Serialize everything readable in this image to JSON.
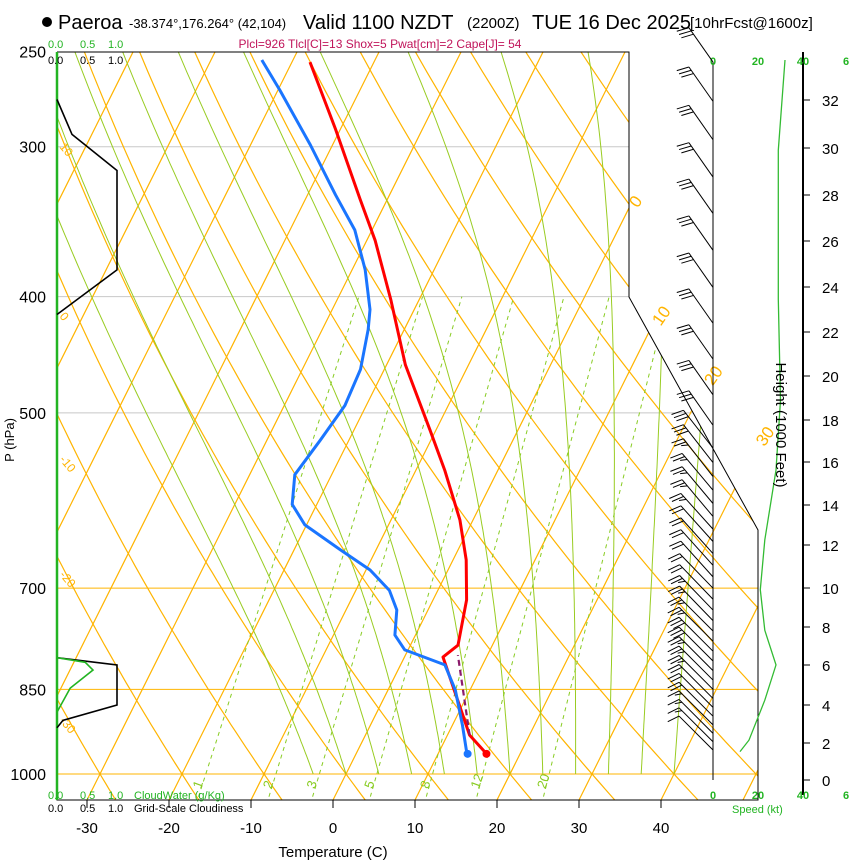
{
  "header": {
    "station": "Paeroa",
    "coords": "-38.374°,176.264° (42,104)",
    "valid": "Valid 1100 NZDT",
    "utc": "(2200Z)",
    "date": "TUE 16 Dec 2025",
    "forecast": "[10hrFcst@1600z]",
    "indices": "Plcl=926 Tlcl[C]=13 Shox=5 Pwat[cm]=2 Cape[J]= 54"
  },
  "cloud_panel": {
    "top_green": [
      "0.0",
      "0.5",
      "1.0"
    ],
    "top_black": [
      "0.0",
      "0.5",
      "1.0"
    ],
    "bottom_green": [
      "0.0",
      "0.5",
      "1.0"
    ],
    "bottom_green_label": "CloudWater (g/Kg)",
    "bottom_black": [
      "0.0",
      "0.5",
      "1.0"
    ],
    "bottom_black_label": "Grid-Scale Cloudiness"
  },
  "wind_panel": {
    "speed_ticks": [
      "0",
      "20",
      "40",
      "6"
    ],
    "speed_label": "Speed (kt)",
    "height_label": "Height (1000 Feet)",
    "height_ticks": [
      "0",
      "2",
      "4",
      "6",
      "8",
      "10",
      "12",
      "14",
      "16",
      "18",
      "20",
      "22",
      "24",
      "26",
      "28",
      "30",
      "32"
    ]
  },
  "colors": {
    "temperature": "#ff0000",
    "dewpoint": "#1a75ff",
    "parcel": "#8b1a6b",
    "isotherm": "#ffb400",
    "moist_adiabat": "#99cc22",
    "mixing_ratio": "#88cc22",
    "cloud_fraction": "#000000",
    "cloud_water": "#22b422",
    "indices": "#c0145a"
  },
  "chart_data": {
    "type": "line",
    "title": "Skew-T log-P sounding",
    "xlabel": "Temperature (C)",
    "ylabel": "P (hPa)",
    "x_ticks": [
      "-30",
      "-20",
      "-10",
      "0",
      "10",
      "20",
      "30",
      "40"
    ],
    "x_tick_values": [
      -30,
      -20,
      -10,
      0,
      10,
      20,
      30,
      40
    ],
    "y_ticks": [
      "250",
      "300",
      "400",
      "500",
      "700",
      "850",
      "1000"
    ],
    "y_tick_values": [
      250,
      300,
      400,
      500,
      700,
      850,
      1000
    ],
    "xlim": [
      -33,
      47
    ],
    "ylim": [
      1050,
      250
    ],
    "isotherm_labels": [
      "0",
      "10",
      "20",
      "30"
    ],
    "dry_adiabat_labels": [
      "10",
      "0",
      "-10",
      "-20",
      "-30"
    ],
    "mixing_ratio_labels": [
      "1",
      "2",
      "3",
      "5",
      "8",
      "12",
      "20"
    ],
    "mixing_ratio_values": [
      1,
      2,
      3,
      5,
      8,
      12,
      20
    ],
    "series": [
      {
        "name": "Temperature",
        "p": [
          962,
          928,
          799,
          781,
          716,
          663,
          614,
          558,
          517,
          456,
          402,
          359,
          332,
          290,
          255
        ],
        "t": [
          15.9,
          12.7,
          4.7,
          5.8,
          4.1,
          1.6,
          -1.6,
          -6.5,
          -10.7,
          -17.7,
          -23.5,
          -29.0,
          -33.3,
          -40.6,
          -47.8
        ]
      },
      {
        "name": "Dewpoint",
        "p": [
          964,
          910,
          851,
          811,
          788,
          766,
          730,
          703,
          676,
          650,
          620,
          596,
          563,
          527,
          493,
          460,
          426,
          410,
          380,
          352,
          329,
          299,
          269,
          254
        ],
        "t": [
          13.6,
          11.2,
          8.2,
          5.4,
          -0.4,
          -2.5,
          -3.8,
          -5.9,
          -9.5,
          -14.4,
          -20.2,
          -23.0,
          -24.5,
          -23.5,
          -22.6,
          -22.9,
          -24.4,
          -25.4,
          -28.4,
          -32.1,
          -36.6,
          -42.7,
          -49.8,
          -53.8
        ]
      },
      {
        "name": "Parcel",
        "p": [
          928,
          796
        ],
        "t": [
          12.7,
          6.4
        ]
      }
    ],
    "cloud_fraction": {
      "p": [
        274,
        293,
        314,
        380,
        414,
        800,
        811,
        876,
        902,
        915
      ],
      "value": [
        0,
        0.25,
        1,
        1,
        0,
        0,
        1,
        1,
        0.1,
        0
      ]
    },
    "cloud_water": {
      "p": [
        800,
        807,
        819,
        848,
        888
      ],
      "value": [
        0,
        0.47,
        0.6,
        0.22,
        0
      ]
    },
    "wind_speed_profile": {
      "p": [
        958,
        937,
        868,
        811,
        759,
        702,
        638,
        558,
        488,
        402,
        302,
        254
      ],
      "speed_kt": [
        12,
        16,
        23,
        28,
        23,
        21,
        23,
        28,
        30,
        29,
        29,
        32
      ]
    },
    "wind_barbs": [
      [
        255,
        325,
        30
      ],
      [
        275,
        325,
        30
      ],
      [
        296,
        325,
        30
      ],
      [
        318,
        325,
        30
      ],
      [
        341,
        325,
        30
      ],
      [
        366,
        325,
        30
      ],
      [
        393,
        325,
        30
      ],
      [
        421,
        325,
        30
      ],
      [
        451,
        325,
        30
      ],
      [
        483,
        325,
        30
      ],
      [
        512,
        325,
        30
      ],
      [
        535,
        322,
        28
      ],
      [
        550,
        322,
        28
      ],
      [
        565,
        322,
        26
      ],
      [
        580,
        320,
        25
      ],
      [
        595,
        320,
        24
      ],
      [
        610,
        320,
        23
      ],
      [
        625,
        318,
        23
      ],
      [
        640,
        318,
        22
      ],
      [
        655,
        318,
        22
      ],
      [
        670,
        318,
        22
      ],
      [
        685,
        318,
        22
      ],
      [
        700,
        316,
        21
      ],
      [
        715,
        316,
        22
      ],
      [
        730,
        316,
        23
      ],
      [
        745,
        316,
        25
      ],
      [
        760,
        315,
        26
      ],
      [
        775,
        315,
        27
      ],
      [
        790,
        315,
        28
      ],
      [
        805,
        315,
        28
      ],
      [
        820,
        315,
        27
      ],
      [
        835,
        315,
        25
      ],
      [
        850,
        315,
        23
      ],
      [
        865,
        315,
        22
      ],
      [
        880,
        315,
        20
      ],
      [
        895,
        315,
        18
      ],
      [
        910,
        315,
        17
      ],
      [
        925,
        315,
        16
      ],
      [
        940,
        315,
        15
      ],
      [
        955,
        315,
        12
      ]
    ],
    "surface": {
      "temperature": 15.9,
      "dewpoint": 13.6,
      "pressure": 962
    }
  }
}
